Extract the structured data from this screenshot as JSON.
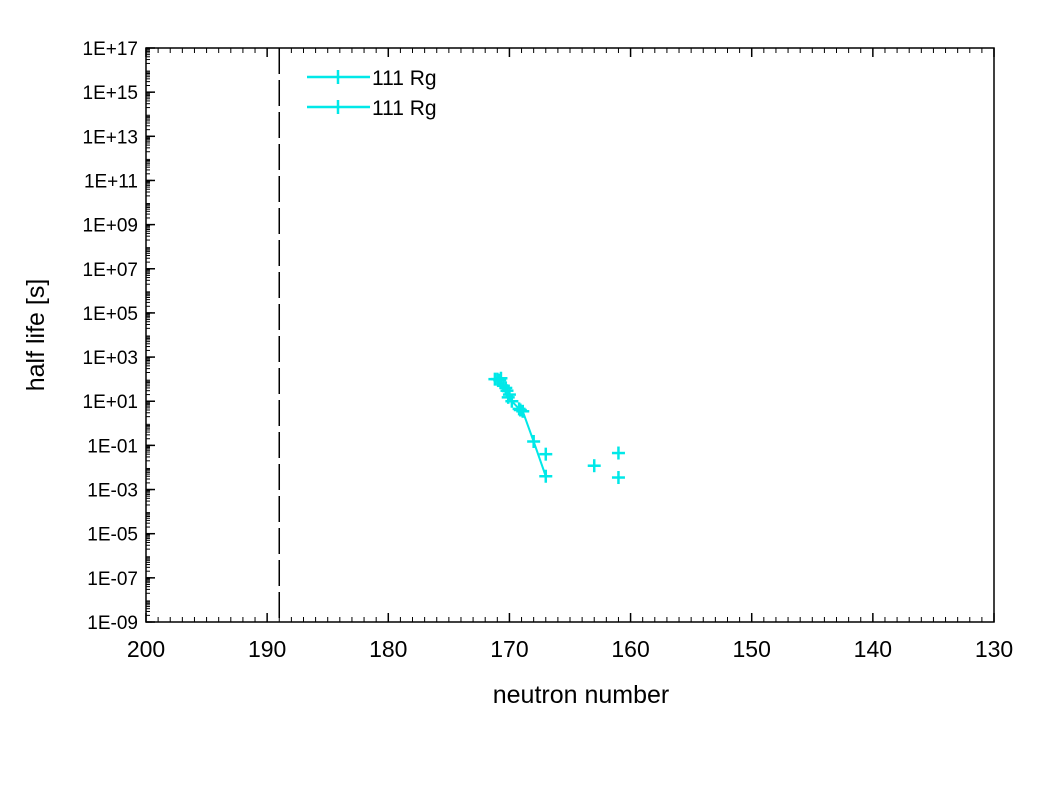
{
  "chart_data": {
    "type": "scatter",
    "xlabel": "neutron number",
    "ylabel": "half life [s]",
    "x_reversed": true,
    "xlim": [
      200,
      130
    ],
    "x_ticks": [
      "200",
      "190",
      "180",
      "170",
      "160",
      "150",
      "140",
      "130"
    ],
    "y_scale": "log",
    "ylim": [
      1e-09,
      1e+17
    ],
    "y_ticks": [
      "1E-09",
      "1E-07",
      "1E-05",
      "1E-03",
      "1E-01",
      "1E+01",
      "1E+03",
      "1E+05",
      "1E+07",
      "1E+09",
      "1E+11",
      "1E+13",
      "1E+15",
      "1E+17"
    ],
    "grid": false,
    "legend_position": "top-left",
    "reference_line": {
      "x": 189,
      "style": "dashed",
      "color": "#000000"
    },
    "series": [
      {
        "name": "111 Rg",
        "style": "line-with-markers",
        "color": "#00e8e8",
        "marker": "plus",
        "points": [
          [
            171.0,
            100
          ],
          [
            170.8,
            90
          ],
          [
            170.5,
            50
          ],
          [
            170.2,
            30
          ],
          [
            170.0,
            20
          ],
          [
            169.8,
            10
          ],
          [
            169.2,
            4.5
          ],
          [
            168.9,
            3.5
          ],
          [
            168.0,
            0.15
          ],
          [
            167.0,
            0.004
          ]
        ]
      },
      {
        "name": "111 Rg",
        "style": "markers",
        "color": "#00e8e8",
        "marker": "plus",
        "points": [
          [
            171.2,
            100
          ],
          [
            170.7,
            110
          ],
          [
            170.3,
            40
          ],
          [
            170.1,
            15
          ],
          [
            169.1,
            4
          ],
          [
            167.0,
            0.04
          ],
          [
            163.0,
            0.012
          ],
          [
            161.0,
            0.045
          ],
          [
            161.0,
            0.0035
          ]
        ]
      }
    ]
  }
}
